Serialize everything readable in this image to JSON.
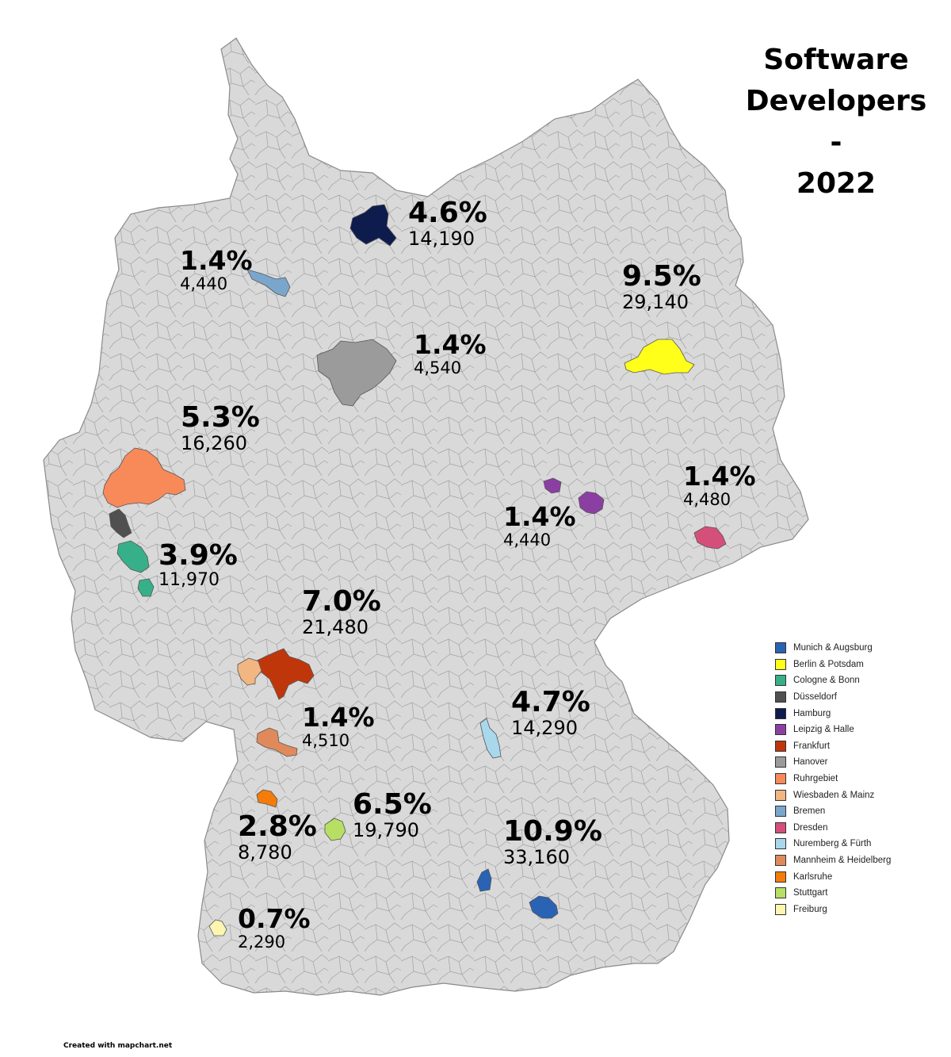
{
  "title": [
    "Software",
    "Developers",
    "-",
    "2022"
  ],
  "credit": "Created with mapchart.net",
  "map": {
    "base_fill": "#d9d9d9",
    "border": "#8a8a8a"
  },
  "regions": [
    {
      "id": "hamburg",
      "name": "Hamburg",
      "color": "#0e1b4d",
      "pct": "4.6%",
      "count": "14,190"
    },
    {
      "id": "bremen",
      "name": "Bremen",
      "color": "#7ba6cc",
      "pct": "1.4%",
      "count": "4,440"
    },
    {
      "id": "hanover",
      "name": "Hanover",
      "color": "#9b9b9b",
      "pct": "1.4%",
      "count": "4,540"
    },
    {
      "id": "berlin",
      "name": "Berlin & Potsdam",
      "color": "#ffff1a",
      "pct": "9.5%",
      "count": "29,140"
    },
    {
      "id": "ruhr",
      "name": "Ruhrgebiet",
      "color": "#f88a5a",
      "pct": "5.3%",
      "count": "16,260"
    },
    {
      "id": "dusseldorf",
      "name": "Düsseldorf",
      "color": "#505050"
    },
    {
      "id": "cologne",
      "name": "Cologne & Bonn",
      "color": "#37b08a",
      "pct": "3.9%",
      "count": "11,970"
    },
    {
      "id": "leipzig",
      "name": "Leipzig & Halle",
      "color": "#8b3fa3",
      "pct": "1.4%",
      "count": "4,440"
    },
    {
      "id": "dresden",
      "name": "Dresden",
      "color": "#d4507a",
      "pct": "1.4%",
      "count": "4,480"
    },
    {
      "id": "frankfurt",
      "name": "Frankfurt",
      "color": "#c0360b",
      "pct": "7.0%",
      "count": "21,480"
    },
    {
      "id": "wiesbaden",
      "name": "Wiesbaden & Mainz",
      "color": "#f2b683"
    },
    {
      "id": "mannheim",
      "name": "Mannheim & Heidelberg",
      "color": "#e08a5c",
      "pct": "1.4%",
      "count": "4,510"
    },
    {
      "id": "nuremberg",
      "name": "Nuremberg & Fürth",
      "color": "#a9d8ec",
      "pct": "4.7%",
      "count": "14,290"
    },
    {
      "id": "karlsruhe",
      "name": "Karlsruhe",
      "color": "#f57b0b",
      "pct": "2.8%",
      "count": "8,780"
    },
    {
      "id": "stuttgart",
      "name": "Stuttgart",
      "color": "#b6df64",
      "pct": "6.5%",
      "count": "19,790"
    },
    {
      "id": "munich",
      "name": "Munich & Augsburg",
      "color": "#2a63b3",
      "pct": "10.9%",
      "count": "33,160"
    },
    {
      "id": "freiburg",
      "name": "Freiburg",
      "color": "#fcf6b0",
      "pct": "0.7%",
      "count": "2,290"
    }
  ],
  "legend": [
    {
      "label": "Munich & Augsburg",
      "color": "#2a63b3"
    },
    {
      "label": "Berlin & Potsdam",
      "color": "#ffff1a"
    },
    {
      "label": "Cologne & Bonn",
      "color": "#37b08a"
    },
    {
      "label": "Düsseldorf",
      "color": "#505050"
    },
    {
      "label": "Hamburg",
      "color": "#0e1b4d"
    },
    {
      "label": "Leipzig & Halle",
      "color": "#8b3fa3"
    },
    {
      "label": "Frankfurt",
      "color": "#c0360b"
    },
    {
      "label": "Hanover",
      "color": "#9b9b9b"
    },
    {
      "label": "Ruhrgebiet",
      "color": "#f88a5a"
    },
    {
      "label": "Wiesbaden & Mainz",
      "color": "#f2b683"
    },
    {
      "label": "Bremen",
      "color": "#7ba6cc"
    },
    {
      "label": "Dresden",
      "color": "#d4507a"
    },
    {
      "label": "Nuremberg & Fürth",
      "color": "#a9d8ec"
    },
    {
      "label": "Mannheim & Heidelberg",
      "color": "#e08a5c"
    },
    {
      "label": "Karlsruhe",
      "color": "#f57b0b"
    },
    {
      "label": "Stuttgart",
      "color": "#b6df64"
    },
    {
      "label": "Freiburg",
      "color": "#fcf6b0"
    }
  ]
}
